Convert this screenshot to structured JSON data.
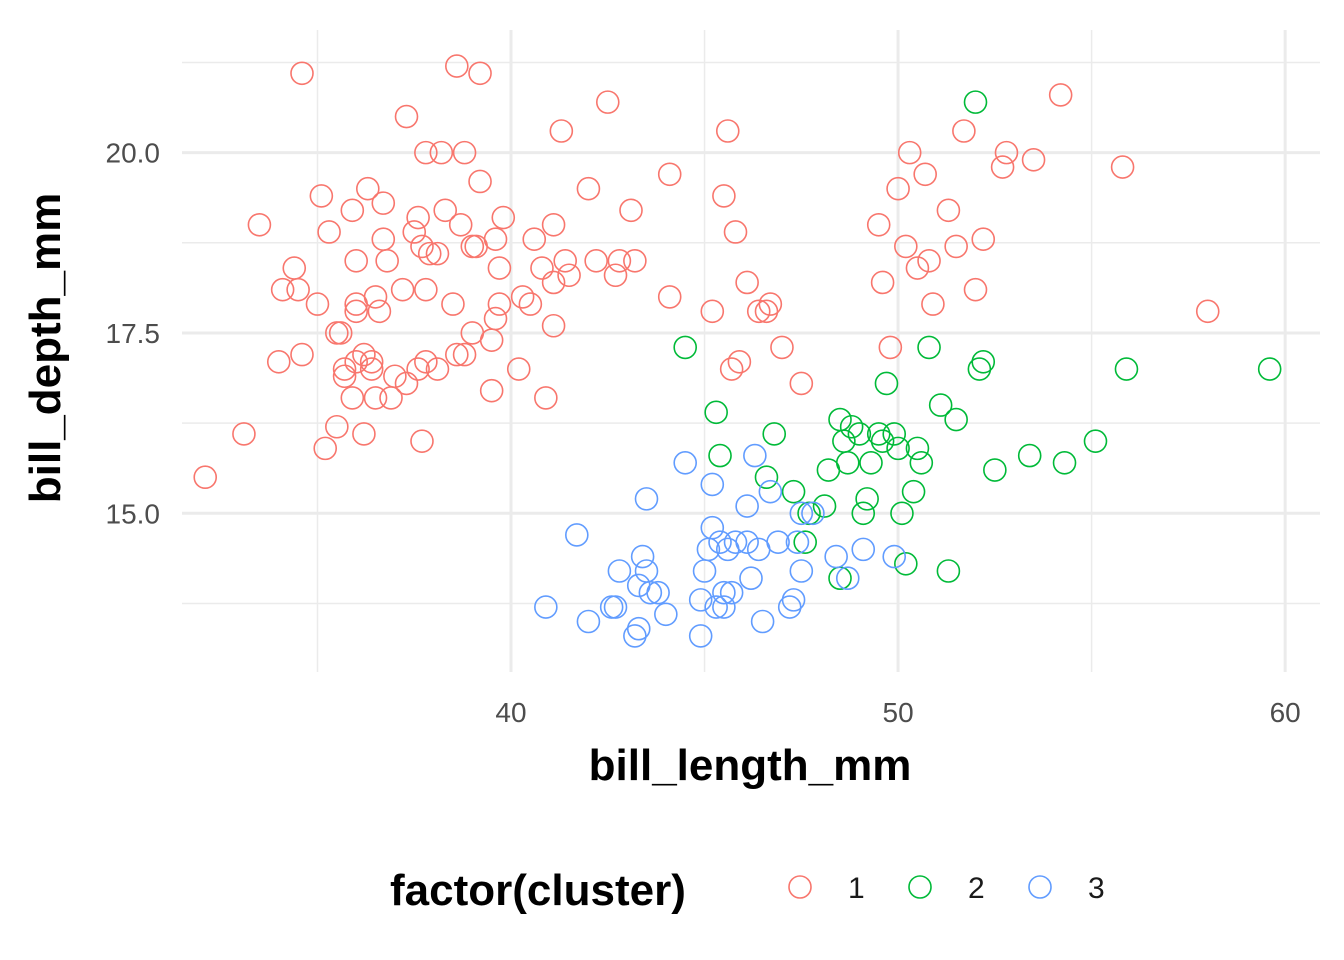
{
  "chart_data": {
    "type": "scatter",
    "xlabel": "bill_length_mm",
    "ylabel": "bill_depth_mm",
    "xlim": [
      31.5,
      60.9
    ],
    "ylim": [
      12.8,
      21.7
    ],
    "x_ticks": [
      40,
      50,
      60
    ],
    "x_tick_labels": [
      "40",
      "50",
      "60"
    ],
    "y_ticks": [
      15.0,
      17.5,
      20.0
    ],
    "y_tick_labels": [
      "15.0",
      "17.5",
      "20.0"
    ],
    "grid": true,
    "legend": {
      "title": "factor(cluster)",
      "position": "bottom"
    },
    "series": [
      {
        "name": "1",
        "color": "#F8766D",
        "points": [
          [
            32.1,
            15.5
          ],
          [
            33.1,
            16.1
          ],
          [
            33.5,
            19.0
          ],
          [
            34.0,
            17.1
          ],
          [
            34.1,
            18.1
          ],
          [
            34.4,
            18.4
          ],
          [
            34.5,
            18.1
          ],
          [
            34.6,
            21.1
          ],
          [
            34.6,
            17.2
          ],
          [
            35.0,
            17.9
          ],
          [
            35.1,
            19.4
          ],
          [
            35.2,
            15.9
          ],
          [
            35.3,
            18.9
          ],
          [
            35.5,
            16.2
          ],
          [
            35.5,
            17.5
          ],
          [
            35.6,
            17.5
          ],
          [
            35.7,
            17.0
          ],
          [
            35.7,
            16.9
          ],
          [
            35.9,
            19.2
          ],
          [
            35.9,
            16.6
          ],
          [
            36.0,
            17.9
          ],
          [
            36.0,
            18.5
          ],
          [
            36.0,
            17.1
          ],
          [
            36.0,
            17.8
          ],
          [
            36.2,
            17.2
          ],
          [
            36.2,
            16.1
          ],
          [
            36.3,
            19.5
          ],
          [
            36.4,
            17.1
          ],
          [
            36.4,
            17.0
          ],
          [
            36.5,
            16.6
          ],
          [
            36.5,
            18.0
          ],
          [
            36.6,
            17.8
          ],
          [
            36.7,
            19.3
          ],
          [
            36.7,
            18.8
          ],
          [
            36.8,
            18.5
          ],
          [
            36.9,
            16.6
          ],
          [
            37.0,
            16.9
          ],
          [
            37.2,
            18.1
          ],
          [
            37.3,
            16.8
          ],
          [
            37.3,
            20.5
          ],
          [
            37.5,
            18.9
          ],
          [
            37.6,
            17.0
          ],
          [
            37.6,
            19.1
          ],
          [
            37.7,
            18.7
          ],
          [
            37.7,
            16.0
          ],
          [
            37.8,
            18.1
          ],
          [
            37.8,
            17.1
          ],
          [
            37.8,
            20.0
          ],
          [
            37.9,
            18.6
          ],
          [
            38.1,
            18.6
          ],
          [
            38.1,
            17.0
          ],
          [
            38.2,
            20.0
          ],
          [
            38.3,
            19.2
          ],
          [
            38.5,
            17.9
          ],
          [
            38.6,
            21.2
          ],
          [
            38.6,
            17.2
          ],
          [
            38.7,
            19.0
          ],
          [
            38.8,
            17.2
          ],
          [
            38.8,
            20.0
          ],
          [
            39.0,
            18.7
          ],
          [
            39.0,
            17.5
          ],
          [
            39.1,
            18.7
          ],
          [
            39.2,
            19.6
          ],
          [
            39.2,
            21.1
          ],
          [
            39.5,
            17.4
          ],
          [
            39.5,
            16.7
          ],
          [
            39.6,
            18.8
          ],
          [
            39.6,
            17.7
          ],
          [
            39.7,
            18.4
          ],
          [
            39.7,
            17.9
          ],
          [
            39.8,
            19.1
          ],
          [
            40.2,
            17.0
          ],
          [
            40.3,
            18.0
          ],
          [
            40.5,
            17.9
          ],
          [
            40.6,
            18.8
          ],
          [
            40.8,
            18.4
          ],
          [
            40.9,
            16.6
          ],
          [
            41.1,
            18.2
          ],
          [
            41.1,
            17.6
          ],
          [
            41.1,
            19.0
          ],
          [
            41.3,
            20.3
          ],
          [
            41.4,
            18.5
          ],
          [
            41.5,
            18.3
          ],
          [
            42.0,
            19.5
          ],
          [
            42.2,
            18.5
          ],
          [
            42.5,
            20.7
          ],
          [
            42.7,
            18.3
          ],
          [
            42.8,
            18.5
          ],
          [
            43.1,
            19.2
          ],
          [
            43.2,
            18.5
          ],
          [
            44.1,
            19.7
          ],
          [
            44.1,
            18.0
          ],
          [
            45.2,
            17.8
          ],
          [
            45.5,
            19.4
          ],
          [
            45.6,
            20.3
          ],
          [
            45.7,
            17.0
          ],
          [
            45.8,
            18.9
          ],
          [
            45.9,
            17.1
          ],
          [
            46.1,
            18.2
          ],
          [
            46.4,
            17.8
          ],
          [
            46.6,
            17.8
          ],
          [
            46.7,
            17.9
          ],
          [
            47.0,
            17.3
          ],
          [
            47.5,
            16.8
          ],
          [
            49.5,
            19.0
          ],
          [
            49.6,
            18.2
          ],
          [
            49.8,
            17.3
          ],
          [
            50.0,
            19.5
          ],
          [
            50.2,
            18.7
          ],
          [
            50.3,
            20.0
          ],
          [
            50.5,
            18.4
          ],
          [
            50.7,
            19.7
          ],
          [
            50.8,
            18.5
          ],
          [
            50.9,
            17.9
          ],
          [
            51.3,
            19.2
          ],
          [
            51.5,
            18.7
          ],
          [
            51.7,
            20.3
          ],
          [
            52.0,
            18.1
          ],
          [
            52.2,
            18.8
          ],
          [
            52.7,
            19.8
          ],
          [
            52.8,
            20.0
          ],
          [
            53.5,
            19.9
          ],
          [
            54.2,
            20.8
          ],
          [
            55.8,
            19.8
          ],
          [
            58.0,
            17.8
          ]
        ]
      },
      {
        "name": "2",
        "color": "#00BA38",
        "points": [
          [
            44.5,
            17.3
          ],
          [
            45.3,
            16.4
          ],
          [
            45.4,
            15.8
          ],
          [
            46.6,
            15.5
          ],
          [
            46.8,
            16.1
          ],
          [
            47.3,
            15.3
          ],
          [
            47.6,
            14.6
          ],
          [
            47.7,
            15.0
          ],
          [
            48.1,
            15.1
          ],
          [
            48.2,
            15.6
          ],
          [
            48.5,
            16.3
          ],
          [
            48.5,
            14.1
          ],
          [
            48.6,
            16.0
          ],
          [
            48.7,
            15.7
          ],
          [
            48.8,
            16.2
          ],
          [
            49.0,
            16.1
          ],
          [
            49.1,
            15.0
          ],
          [
            49.2,
            15.2
          ],
          [
            49.3,
            15.7
          ],
          [
            49.5,
            16.1
          ],
          [
            49.6,
            16.0
          ],
          [
            49.7,
            16.8
          ],
          [
            49.9,
            16.1
          ],
          [
            50.0,
            15.9
          ],
          [
            50.1,
            15.0
          ],
          [
            50.2,
            14.3
          ],
          [
            50.4,
            15.3
          ],
          [
            50.5,
            15.9
          ],
          [
            50.6,
            15.7
          ],
          [
            50.8,
            17.3
          ],
          [
            51.1,
            16.5
          ],
          [
            51.3,
            14.2
          ],
          [
            51.5,
            16.3
          ],
          [
            52.0,
            20.7
          ],
          [
            52.1,
            17.0
          ],
          [
            52.2,
            17.1
          ],
          [
            52.5,
            15.6
          ],
          [
            53.4,
            15.8
          ],
          [
            54.3,
            15.7
          ],
          [
            55.1,
            16.0
          ],
          [
            55.9,
            17.0
          ],
          [
            59.6,
            17.0
          ]
        ]
      },
      {
        "name": "3",
        "color": "#619CFF",
        "points": [
          [
            40.9,
            13.7
          ],
          [
            41.7,
            14.7
          ],
          [
            42.0,
            13.5
          ],
          [
            42.6,
            13.7
          ],
          [
            42.7,
            13.7
          ],
          [
            42.8,
            14.2
          ],
          [
            43.2,
            13.3
          ],
          [
            43.3,
            14.0
          ],
          [
            43.3,
            13.4
          ],
          [
            43.4,
            14.4
          ],
          [
            43.5,
            14.2
          ],
          [
            43.5,
            15.2
          ],
          [
            43.6,
            13.9
          ],
          [
            43.8,
            13.9
          ],
          [
            44.0,
            13.6
          ],
          [
            44.5,
            15.7
          ],
          [
            44.9,
            13.8
          ],
          [
            44.9,
            13.3
          ],
          [
            45.0,
            14.2
          ],
          [
            45.1,
            14.5
          ],
          [
            45.2,
            15.4
          ],
          [
            45.2,
            14.8
          ],
          [
            45.3,
            13.7
          ],
          [
            45.4,
            14.6
          ],
          [
            45.5,
            13.9
          ],
          [
            45.5,
            13.7
          ],
          [
            45.6,
            14.5
          ],
          [
            45.7,
            13.9
          ],
          [
            45.8,
            14.6
          ],
          [
            46.1,
            14.6
          ],
          [
            46.1,
            15.1
          ],
          [
            46.2,
            14.1
          ],
          [
            46.3,
            15.8
          ],
          [
            46.4,
            14.5
          ],
          [
            46.5,
            13.5
          ],
          [
            46.7,
            15.3
          ],
          [
            46.9,
            14.6
          ],
          [
            47.2,
            13.7
          ],
          [
            47.3,
            13.8
          ],
          [
            47.4,
            14.6
          ],
          [
            47.5,
            14.2
          ],
          [
            47.5,
            15.0
          ],
          [
            47.8,
            15.0
          ],
          [
            48.4,
            14.4
          ],
          [
            48.7,
            14.1
          ],
          [
            49.1,
            14.5
          ],
          [
            49.9,
            14.4
          ]
        ]
      }
    ]
  }
}
